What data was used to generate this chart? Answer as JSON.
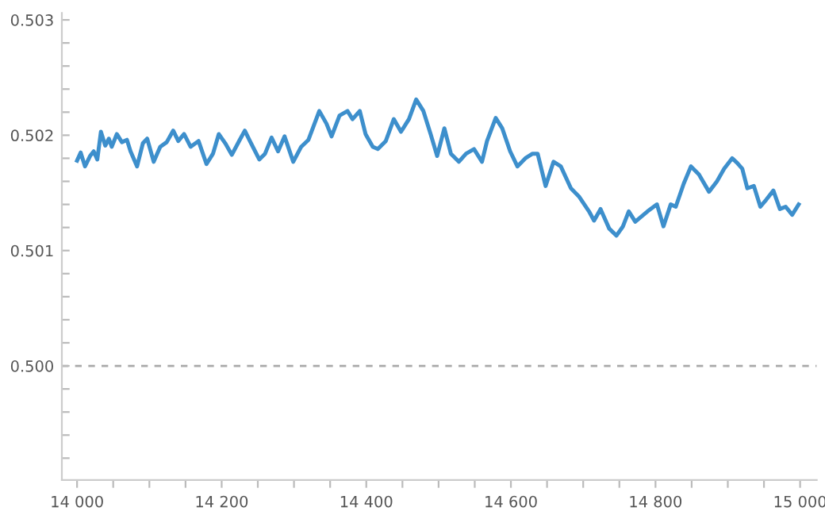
{
  "chart_data": {
    "type": "line",
    "x": [
      14000,
      14005,
      14011,
      14018,
      14023,
      14028,
      14033,
      14039,
      14044,
      14048,
      14055,
      14062,
      14069,
      14074,
      14083,
      14091,
      14097,
      14106,
      14115,
      14124,
      14133,
      14140,
      14148,
      14157,
      14168,
      14179,
      14188,
      14196,
      14205,
      14214,
      14225,
      14232,
      14239,
      14252,
      14260,
      14269,
      14278,
      14287,
      14299,
      14310,
      14320,
      14335,
      14345,
      14352,
      14363,
      14374,
      14381,
      14391,
      14399,
      14409,
      14416,
      14427,
      14438,
      14448,
      14459,
      14469,
      14479,
      14489,
      14498,
      14508,
      14517,
      14528,
      14538,
      14549,
      14560,
      14567,
      14579,
      14588,
      14599,
      14609,
      14620,
      14630,
      14637,
      14648,
      14659,
      14669,
      14683,
      14694,
      14708,
      14715,
      14724,
      14736,
      14746,
      14755,
      14763,
      14772,
      14789,
      14802,
      14811,
      14821,
      14828,
      14839,
      14849,
      14860,
      14874,
      14885,
      14895,
      14906,
      14913,
      14920,
      14927,
      14936,
      14945,
      14953,
      14963,
      14972,
      14980,
      14989,
      14998
    ],
    "series": [
      {
        "color": "#3d8fcc",
        "values": [
          0.50178,
          0.50185,
          0.50173,
          0.50182,
          0.50186,
          0.50179,
          0.50203,
          0.50191,
          0.50197,
          0.5019,
          0.50201,
          0.50194,
          0.50196,
          0.50186,
          0.50173,
          0.50193,
          0.50197,
          0.50177,
          0.5019,
          0.50194,
          0.50204,
          0.50195,
          0.50201,
          0.5019,
          0.50195,
          0.50175,
          0.50184,
          0.50201,
          0.50193,
          0.50183,
          0.50196,
          0.50204,
          0.50195,
          0.50179,
          0.50184,
          0.50198,
          0.50186,
          0.50199,
          0.50177,
          0.5019,
          0.50196,
          0.50221,
          0.5021,
          0.50199,
          0.50217,
          0.50221,
          0.50214,
          0.50221,
          0.50201,
          0.5019,
          0.50188,
          0.50195,
          0.50214,
          0.50203,
          0.50214,
          0.50231,
          0.50221,
          0.50201,
          0.50182,
          0.50206,
          0.50184,
          0.50177,
          0.50184,
          0.50188,
          0.50177,
          0.50195,
          0.50215,
          0.50206,
          0.50186,
          0.50173,
          0.5018,
          0.50184,
          0.50184,
          0.50156,
          0.50177,
          0.50173,
          0.50154,
          0.50147,
          0.50134,
          0.50126,
          0.50136,
          0.50119,
          0.50113,
          0.50121,
          0.50134,
          0.50125,
          0.50134,
          0.5014,
          0.50121,
          0.5014,
          0.50138,
          0.50158,
          0.50173,
          0.50166,
          0.50151,
          0.5016,
          0.50171,
          0.5018,
          0.50176,
          0.50171,
          0.50154,
          0.50156,
          0.50138,
          0.50144,
          0.50152,
          0.50136,
          0.50138,
          0.50131,
          0.5014
        ]
      }
    ],
    "xlim": [
      13979,
      15023
    ],
    "ylim": [
      0.49901,
      0.50306
    ],
    "xticks": [
      {
        "value": 14000,
        "label": "14 000"
      },
      {
        "value": 14050,
        "label": null
      },
      {
        "value": 14100,
        "label": null
      },
      {
        "value": 14150,
        "label": null
      },
      {
        "value": 14200,
        "label": "14 200"
      },
      {
        "value": 14250,
        "label": null
      },
      {
        "value": 14300,
        "label": null
      },
      {
        "value": 14350,
        "label": null
      },
      {
        "value": 14400,
        "label": "14 400"
      },
      {
        "value": 14450,
        "label": null
      },
      {
        "value": 14500,
        "label": null
      },
      {
        "value": 14550,
        "label": null
      },
      {
        "value": 14600,
        "label": "14 600"
      },
      {
        "value": 14650,
        "label": null
      },
      {
        "value": 14700,
        "label": null
      },
      {
        "value": 14750,
        "label": null
      },
      {
        "value": 14800,
        "label": "14 800"
      },
      {
        "value": 14850,
        "label": null
      },
      {
        "value": 14900,
        "label": null
      },
      {
        "value": 14950,
        "label": null
      },
      {
        "value": 15000,
        "label": "15 000"
      }
    ],
    "yticks": [
      {
        "value": 0.4992,
        "label": null
      },
      {
        "value": 0.4994,
        "label": null
      },
      {
        "value": 0.4996,
        "label": null
      },
      {
        "value": 0.4998,
        "label": null
      },
      {
        "value": 0.5,
        "label": "0.500"
      },
      {
        "value": 0.5002,
        "label": null
      },
      {
        "value": 0.5004,
        "label": null
      },
      {
        "value": 0.5006,
        "label": null
      },
      {
        "value": 0.5008,
        "label": null
      },
      {
        "value": 0.501,
        "label": "0.501"
      },
      {
        "value": 0.5012,
        "label": null
      },
      {
        "value": 0.5014,
        "label": null
      },
      {
        "value": 0.5016,
        "label": null
      },
      {
        "value": 0.5018,
        "label": null
      },
      {
        "value": 0.502,
        "label": "0.502"
      },
      {
        "value": 0.5022,
        "label": null
      },
      {
        "value": 0.5024,
        "label": null
      },
      {
        "value": 0.5026,
        "label": null
      },
      {
        "value": 0.5028,
        "label": null
      },
      {
        "value": 0.503,
        "label": "0.503"
      }
    ],
    "ref_lines": [
      {
        "axis": "y",
        "value": 0.5,
        "color": "#aaaaaa",
        "line_style": "dashed"
      }
    ],
    "grid": false,
    "legend": false
  }
}
